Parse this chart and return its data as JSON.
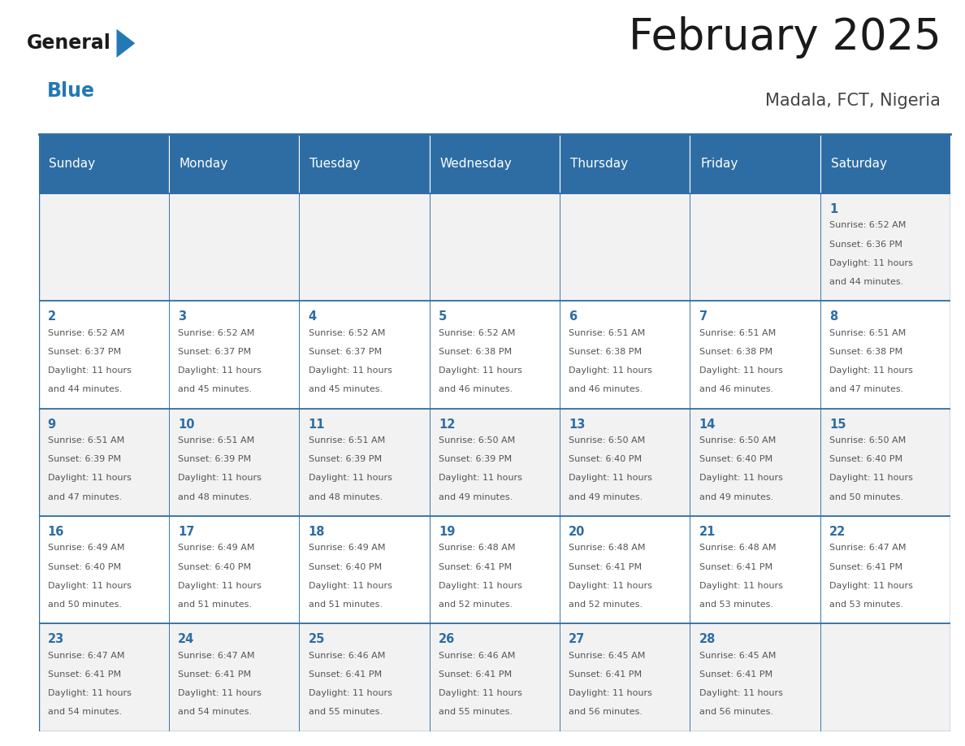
{
  "title": "February 2025",
  "subtitle": "Madala, FCT, Nigeria",
  "days_of_week": [
    "Sunday",
    "Monday",
    "Tuesday",
    "Wednesday",
    "Thursday",
    "Friday",
    "Saturday"
  ],
  "header_bg": "#2E6DA4",
  "header_text": "#FFFFFF",
  "cell_bg_light": "#F2F2F2",
  "cell_bg_white": "#FFFFFF",
  "cell_border": "#2E6DA4",
  "day_num_color": "#2E6DA4",
  "cell_text_color": "#555555",
  "title_color": "#1a1a1a",
  "subtitle_color": "#444444",
  "logo_general_color": "#1a1a1a",
  "logo_blue_color": "#2479B5",
  "weeks": [
    [
      {
        "day": null,
        "info": null
      },
      {
        "day": null,
        "info": null
      },
      {
        "day": null,
        "info": null
      },
      {
        "day": null,
        "info": null
      },
      {
        "day": null,
        "info": null
      },
      {
        "day": null,
        "info": null
      },
      {
        "day": 1,
        "info": "Sunrise: 6:52 AM\nSunset: 6:36 PM\nDaylight: 11 hours\nand 44 minutes."
      }
    ],
    [
      {
        "day": 2,
        "info": "Sunrise: 6:52 AM\nSunset: 6:37 PM\nDaylight: 11 hours\nand 44 minutes."
      },
      {
        "day": 3,
        "info": "Sunrise: 6:52 AM\nSunset: 6:37 PM\nDaylight: 11 hours\nand 45 minutes."
      },
      {
        "day": 4,
        "info": "Sunrise: 6:52 AM\nSunset: 6:37 PM\nDaylight: 11 hours\nand 45 minutes."
      },
      {
        "day": 5,
        "info": "Sunrise: 6:52 AM\nSunset: 6:38 PM\nDaylight: 11 hours\nand 46 minutes."
      },
      {
        "day": 6,
        "info": "Sunrise: 6:51 AM\nSunset: 6:38 PM\nDaylight: 11 hours\nand 46 minutes."
      },
      {
        "day": 7,
        "info": "Sunrise: 6:51 AM\nSunset: 6:38 PM\nDaylight: 11 hours\nand 46 minutes."
      },
      {
        "day": 8,
        "info": "Sunrise: 6:51 AM\nSunset: 6:38 PM\nDaylight: 11 hours\nand 47 minutes."
      }
    ],
    [
      {
        "day": 9,
        "info": "Sunrise: 6:51 AM\nSunset: 6:39 PM\nDaylight: 11 hours\nand 47 minutes."
      },
      {
        "day": 10,
        "info": "Sunrise: 6:51 AM\nSunset: 6:39 PM\nDaylight: 11 hours\nand 48 minutes."
      },
      {
        "day": 11,
        "info": "Sunrise: 6:51 AM\nSunset: 6:39 PM\nDaylight: 11 hours\nand 48 minutes."
      },
      {
        "day": 12,
        "info": "Sunrise: 6:50 AM\nSunset: 6:39 PM\nDaylight: 11 hours\nand 49 minutes."
      },
      {
        "day": 13,
        "info": "Sunrise: 6:50 AM\nSunset: 6:40 PM\nDaylight: 11 hours\nand 49 minutes."
      },
      {
        "day": 14,
        "info": "Sunrise: 6:50 AM\nSunset: 6:40 PM\nDaylight: 11 hours\nand 49 minutes."
      },
      {
        "day": 15,
        "info": "Sunrise: 6:50 AM\nSunset: 6:40 PM\nDaylight: 11 hours\nand 50 minutes."
      }
    ],
    [
      {
        "day": 16,
        "info": "Sunrise: 6:49 AM\nSunset: 6:40 PM\nDaylight: 11 hours\nand 50 minutes."
      },
      {
        "day": 17,
        "info": "Sunrise: 6:49 AM\nSunset: 6:40 PM\nDaylight: 11 hours\nand 51 minutes."
      },
      {
        "day": 18,
        "info": "Sunrise: 6:49 AM\nSunset: 6:40 PM\nDaylight: 11 hours\nand 51 minutes."
      },
      {
        "day": 19,
        "info": "Sunrise: 6:48 AM\nSunset: 6:41 PM\nDaylight: 11 hours\nand 52 minutes."
      },
      {
        "day": 20,
        "info": "Sunrise: 6:48 AM\nSunset: 6:41 PM\nDaylight: 11 hours\nand 52 minutes."
      },
      {
        "day": 21,
        "info": "Sunrise: 6:48 AM\nSunset: 6:41 PM\nDaylight: 11 hours\nand 53 minutes."
      },
      {
        "day": 22,
        "info": "Sunrise: 6:47 AM\nSunset: 6:41 PM\nDaylight: 11 hours\nand 53 minutes."
      }
    ],
    [
      {
        "day": 23,
        "info": "Sunrise: 6:47 AM\nSunset: 6:41 PM\nDaylight: 11 hours\nand 54 minutes."
      },
      {
        "day": 24,
        "info": "Sunrise: 6:47 AM\nSunset: 6:41 PM\nDaylight: 11 hours\nand 54 minutes."
      },
      {
        "day": 25,
        "info": "Sunrise: 6:46 AM\nSunset: 6:41 PM\nDaylight: 11 hours\nand 55 minutes."
      },
      {
        "day": 26,
        "info": "Sunrise: 6:46 AM\nSunset: 6:41 PM\nDaylight: 11 hours\nand 55 minutes."
      },
      {
        "day": 27,
        "info": "Sunrise: 6:45 AM\nSunset: 6:41 PM\nDaylight: 11 hours\nand 56 minutes."
      },
      {
        "day": 28,
        "info": "Sunrise: 6:45 AM\nSunset: 6:41 PM\nDaylight: 11 hours\nand 56 minutes."
      },
      {
        "day": null,
        "info": null
      }
    ]
  ]
}
